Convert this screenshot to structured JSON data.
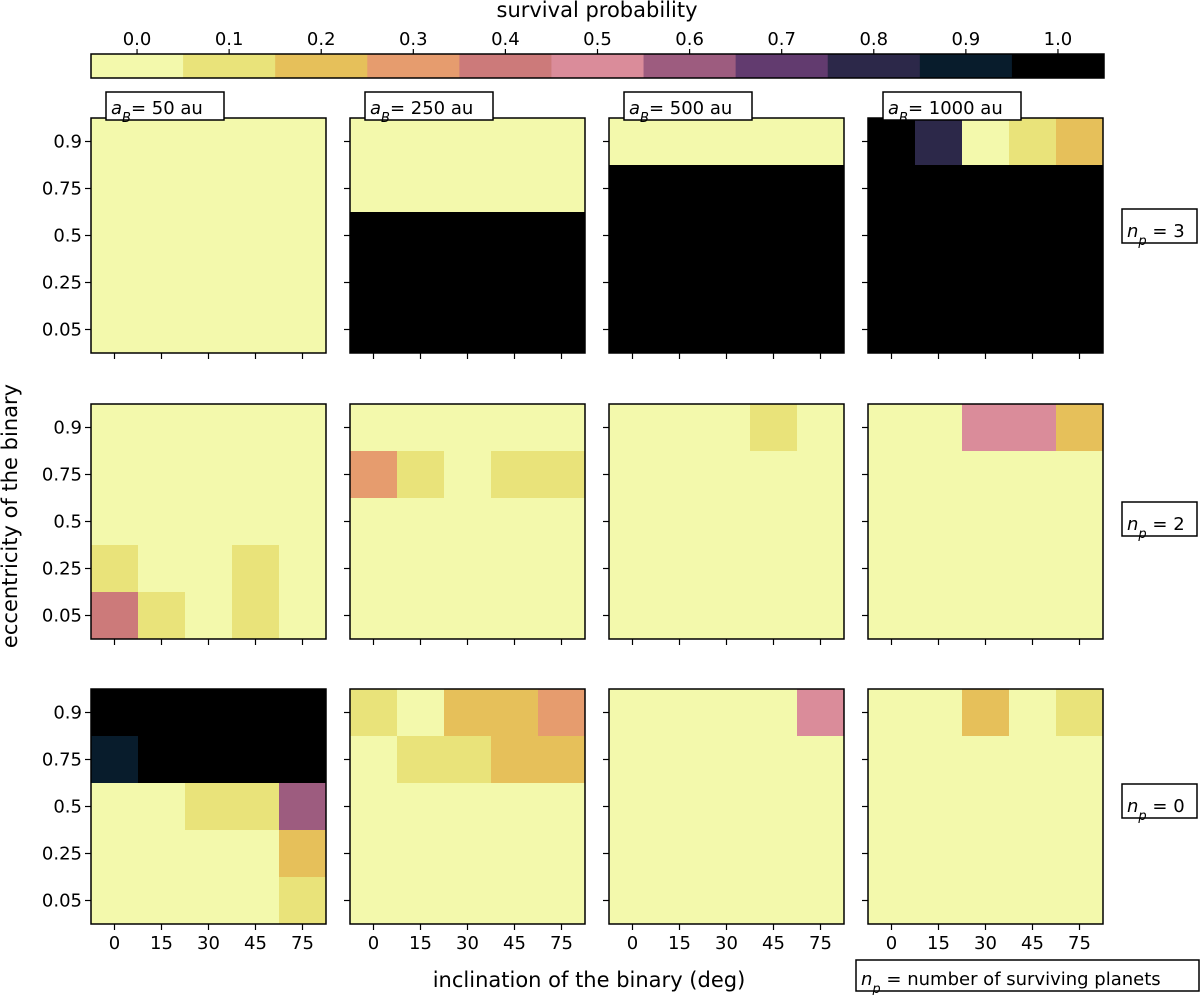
{
  "chart_data": {
    "type": "heatmap",
    "colorbar": {
      "title": "survival probability",
      "ticks": [
        "0.0",
        "0.1",
        "0.2",
        "0.3",
        "0.4",
        "0.5",
        "0.6",
        "0.7",
        "0.8",
        "0.9",
        "1.0"
      ],
      "colors": [
        "#f3f9ac",
        "#e9e37a",
        "#e6c05a",
        "#e69c6e",
        "#cc7a7a",
        "#da8c9a",
        "#9d5c7f",
        "#623b6f",
        "#2c2849",
        "#081c2c",
        "#000000"
      ]
    },
    "xlabel": "inclination of the binary (deg)",
    "ylabel": "eccentricity of the binary",
    "x_categories": [
      "0",
      "15",
      "30",
      "45",
      "75"
    ],
    "y_categories": [
      "0.9",
      "0.75",
      "0.5",
      "0.25",
      "0.05"
    ],
    "column_labels": [
      {
        "prefix": "a",
        "sub": "B",
        "suffix": "=  50 au"
      },
      {
        "prefix": "a",
        "sub": "B",
        "suffix": "=  250 au"
      },
      {
        "prefix": "a",
        "sub": "B",
        "suffix": "=  500 au"
      },
      {
        "prefix": "a",
        "sub": "B",
        "suffix": "=  1000 au"
      }
    ],
    "row_labels": [
      {
        "prefix": "n",
        "sub": "p",
        "suffix": " = 3"
      },
      {
        "prefix": "n",
        "sub": "p",
        "suffix": " = 2"
      },
      {
        "prefix": "n",
        "sub": "p",
        "suffix": " = 0"
      }
    ],
    "legend_note": {
      "prefix": "n",
      "sub": "p",
      "suffix": " = number of surviving planets"
    },
    "panels": [
      [
        [
          [
            0,
            0,
            0,
            0,
            0
          ],
          [
            0,
            0,
            0,
            0,
            0
          ],
          [
            0,
            0,
            0,
            0,
            0
          ],
          [
            0,
            0,
            0,
            0,
            0
          ],
          [
            0,
            0,
            0,
            0,
            0
          ]
        ],
        [
          [
            0,
            0,
            0,
            0,
            0
          ],
          [
            0,
            0,
            0,
            0,
            0
          ],
          [
            1,
            1,
            1,
            1,
            1
          ],
          [
            1,
            1,
            1,
            1,
            1
          ],
          [
            1,
            1,
            1,
            1,
            1
          ]
        ],
        [
          [
            0,
            0,
            0,
            0,
            0
          ],
          [
            1,
            1,
            1,
            1,
            1
          ],
          [
            1,
            1,
            1,
            1,
            1
          ],
          [
            1,
            1,
            1,
            1,
            1
          ],
          [
            1,
            1,
            1,
            1,
            1
          ]
        ],
        [
          [
            1,
            0.8,
            0,
            0.1,
            0.2
          ],
          [
            1,
            1,
            1,
            1,
            1
          ],
          [
            1,
            1,
            1,
            1,
            1
          ],
          [
            1,
            1,
            1,
            1,
            1
          ],
          [
            1,
            1,
            1,
            1,
            1
          ]
        ]
      ],
      [
        [
          [
            0,
            0,
            0,
            0,
            0
          ],
          [
            0,
            0,
            0,
            0,
            0
          ],
          [
            0,
            0,
            0,
            0,
            0
          ],
          [
            0.1,
            0,
            0,
            0.1,
            0
          ],
          [
            0.4,
            0.1,
            0,
            0.1,
            0
          ]
        ],
        [
          [
            0,
            0,
            0,
            0,
            0
          ],
          [
            0.3,
            0.1,
            0,
            0.1,
            0.1
          ],
          [
            0,
            0,
            0,
            0,
            0
          ],
          [
            0,
            0,
            0,
            0,
            0
          ],
          [
            0,
            0,
            0,
            0,
            0
          ]
        ],
        [
          [
            0,
            0,
            0,
            0.1,
            0
          ],
          [
            0,
            0,
            0,
            0,
            0
          ],
          [
            0,
            0,
            0,
            0,
            0
          ],
          [
            0,
            0,
            0,
            0,
            0
          ],
          [
            0,
            0,
            0,
            0,
            0
          ]
        ],
        [
          [
            0,
            0,
            0.5,
            0.5,
            0.2
          ],
          [
            0,
            0,
            0,
            0,
            0
          ],
          [
            0,
            0,
            0,
            0,
            0
          ],
          [
            0,
            0,
            0,
            0,
            0
          ],
          [
            0,
            0,
            0,
            0,
            0
          ]
        ]
      ],
      [
        [
          [
            1,
            1,
            1,
            1,
            1
          ],
          [
            0.9,
            1,
            1,
            1,
            1
          ],
          [
            0,
            0,
            0.1,
            0.1,
            0.6
          ],
          [
            0,
            0,
            0,
            0,
            0.2
          ],
          [
            0,
            0,
            0,
            0,
            0.1
          ]
        ],
        [
          [
            0.1,
            0,
            0.2,
            0.2,
            0.3
          ],
          [
            0,
            0.1,
            0.1,
            0.2,
            0.2
          ],
          [
            0,
            0,
            0,
            0,
            0
          ],
          [
            0,
            0,
            0,
            0,
            0
          ],
          [
            0,
            0,
            0,
            0,
            0
          ]
        ],
        [
          [
            0,
            0,
            0,
            0,
            0.5
          ],
          [
            0,
            0,
            0,
            0,
            0
          ],
          [
            0,
            0,
            0,
            0,
            0
          ],
          [
            0,
            0,
            0,
            0,
            0
          ],
          [
            0,
            0,
            0,
            0,
            0
          ]
        ],
        [
          [
            0,
            0,
            0.2,
            0,
            0.1
          ],
          [
            0,
            0,
            0,
            0,
            0
          ],
          [
            0,
            0,
            0,
            0,
            0
          ],
          [
            0,
            0,
            0,
            0,
            0
          ],
          [
            0,
            0,
            0,
            0,
            0
          ]
        ]
      ]
    ]
  }
}
